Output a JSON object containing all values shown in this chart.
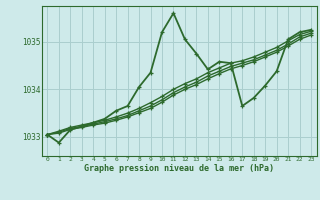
{
  "title": "Graphe pression niveau de la mer (hPa)",
  "bg_color": "#ceeaea",
  "grid_color": "#aacece",
  "line_color": "#2d6a2d",
  "text_color": "#2d6a2d",
  "xlim": [
    -0.5,
    23.5
  ],
  "ylim": [
    1032.6,
    1035.75
  ],
  "yticks": [
    1033,
    1034,
    1035
  ],
  "xticks": [
    0,
    1,
    2,
    3,
    4,
    5,
    6,
    7,
    8,
    9,
    10,
    11,
    12,
    13,
    14,
    15,
    16,
    17,
    18,
    19,
    20,
    21,
    22,
    23
  ],
  "series": [
    {
      "x": [
        0,
        1,
        2,
        3,
        4,
        5,
        6,
        7,
        8,
        9,
        10,
        11,
        12,
        13,
        14,
        15,
        16,
        17,
        18,
        19,
        20,
        21,
        22,
        23
      ],
      "y": [
        1033.05,
        1032.88,
        1033.15,
        1033.22,
        1033.3,
        1033.38,
        1033.55,
        1033.65,
        1034.05,
        1034.35,
        1035.2,
        1035.6,
        1035.05,
        1034.75,
        1034.42,
        1034.58,
        1034.55,
        1033.65,
        1033.82,
        1034.08,
        1034.38,
        1035.05,
        1035.2,
        1035.25
      ],
      "lw": 1.3
    },
    {
      "x": [
        0,
        1,
        2,
        3,
        4,
        5,
        6,
        7,
        8,
        9,
        10,
        11,
        12,
        13,
        14,
        15,
        16,
        17,
        18,
        19,
        20,
        21,
        22,
        23
      ],
      "y": [
        1033.05,
        1033.12,
        1033.2,
        1033.25,
        1033.3,
        1033.35,
        1033.42,
        1033.5,
        1033.6,
        1033.72,
        1033.85,
        1034.0,
        1034.12,
        1034.22,
        1034.35,
        1034.45,
        1034.55,
        1034.6,
        1034.68,
        1034.78,
        1034.88,
        1035.02,
        1035.15,
        1035.22
      ],
      "lw": 1.0
    },
    {
      "x": [
        0,
        1,
        2,
        3,
        4,
        5,
        6,
        7,
        8,
        9,
        10,
        11,
        12,
        13,
        14,
        15,
        16,
        17,
        18,
        19,
        20,
        21,
        22,
        23
      ],
      "y": [
        1033.05,
        1033.1,
        1033.18,
        1033.22,
        1033.27,
        1033.32,
        1033.38,
        1033.45,
        1033.55,
        1033.65,
        1033.78,
        1033.93,
        1034.05,
        1034.15,
        1034.28,
        1034.38,
        1034.48,
        1034.55,
        1034.62,
        1034.72,
        1034.82,
        1034.95,
        1035.1,
        1035.18
      ],
      "lw": 1.0
    },
    {
      "x": [
        0,
        1,
        2,
        3,
        4,
        5,
        6,
        7,
        8,
        9,
        10,
        11,
        12,
        13,
        14,
        15,
        16,
        17,
        18,
        19,
        20,
        21,
        22,
        23
      ],
      "y": [
        1033.05,
        1033.08,
        1033.16,
        1033.2,
        1033.25,
        1033.29,
        1033.35,
        1033.42,
        1033.51,
        1033.6,
        1033.73,
        1033.88,
        1034.0,
        1034.1,
        1034.22,
        1034.33,
        1034.43,
        1034.5,
        1034.58,
        1034.68,
        1034.78,
        1034.91,
        1035.05,
        1035.14
      ],
      "lw": 1.0
    }
  ]
}
